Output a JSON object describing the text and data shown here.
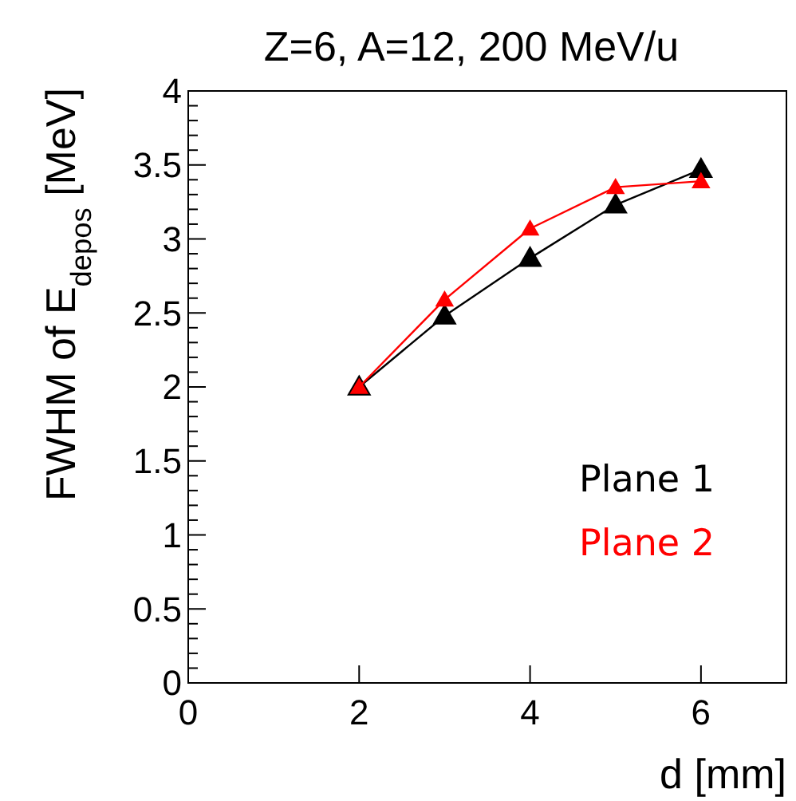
{
  "chart_data": {
    "type": "line",
    "title": "Z=6, A=12, 200 MeV/u",
    "xlabel": "d [mm]",
    "ylabel": "FWHM of E$_{depos}$ [MeV]",
    "series": [
      {
        "name": "Plane 1",
        "color": "#000000",
        "x": [
          2,
          3,
          4,
          5,
          6
        ],
        "values": [
          2.0,
          2.48,
          2.87,
          3.23,
          3.47
        ]
      },
      {
        "name": "Plane 2",
        "color": "#ff0000",
        "x": [
          2,
          3,
          4,
          5,
          6
        ],
        "values": [
          2.0,
          2.59,
          3.07,
          3.35,
          3.39
        ]
      }
    ],
    "xlim": [
      0,
      7
    ],
    "xticks": [
      0,
      2,
      4,
      6
    ],
    "ylim": [
      0,
      4
    ],
    "yticks": [
      0,
      0.5,
      1,
      1.5,
      2,
      2.5,
      3,
      3.5,
      4
    ],
    "marker": "triangle",
    "legend": "bottom right",
    "grid": false
  }
}
